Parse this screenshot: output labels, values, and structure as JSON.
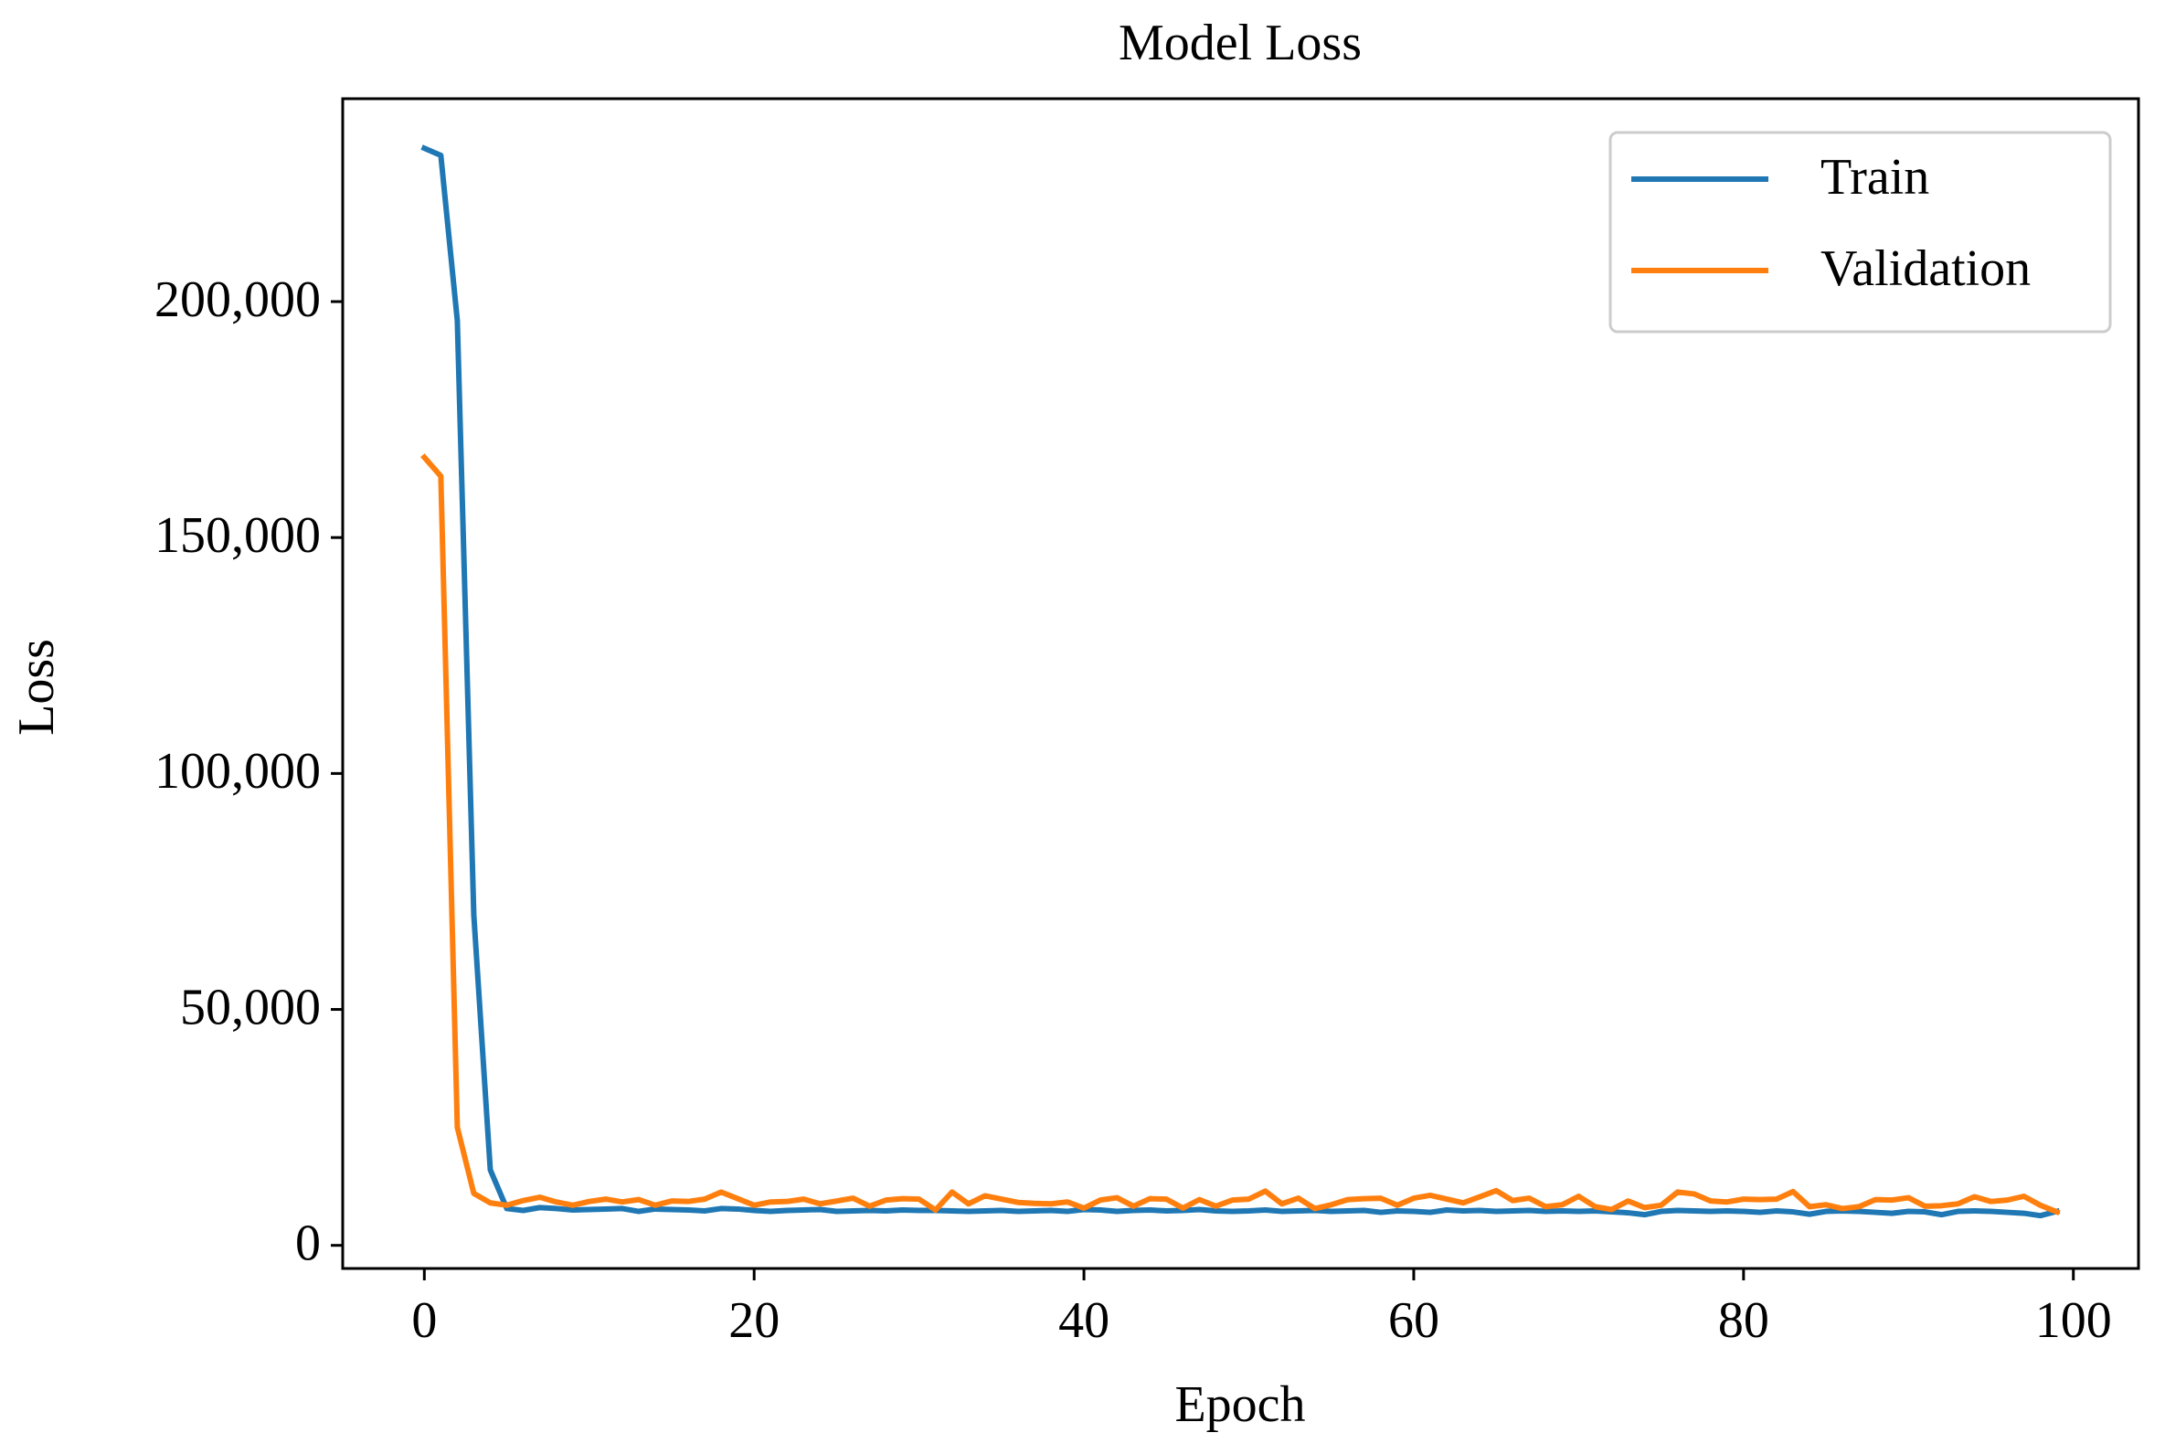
{
  "chart_data": {
    "type": "line",
    "title": "Model Loss",
    "xlabel": "Epoch",
    "ylabel": "Loss",
    "xlim": [
      -4.95,
      103.95
    ],
    "ylim": [
      -4900,
      243000
    ],
    "xticks": [
      0,
      20,
      40,
      60,
      80,
      100
    ],
    "xtick_labels": [
      "0",
      "20",
      "40",
      "60",
      "80",
      "100"
    ],
    "yticks": [
      0,
      50000,
      100000,
      150000,
      200000
    ],
    "ytick_labels": [
      "0",
      "50,000",
      "100,000",
      "150,000",
      "200,000"
    ],
    "grid": false,
    "legend_position": "top-right",
    "x": [
      0,
      1,
      2,
      3,
      4,
      5,
      6,
      7,
      8,
      9,
      10,
      11,
      12,
      13,
      14,
      15,
      16,
      17,
      18,
      19,
      20,
      21,
      22,
      23,
      24,
      25,
      26,
      27,
      28,
      29,
      30,
      31,
      32,
      33,
      34,
      35,
      36,
      37,
      38,
      39,
      40,
      41,
      42,
      43,
      44,
      45,
      46,
      47,
      48,
      49,
      50,
      51,
      52,
      53,
      54,
      55,
      56,
      57,
      58,
      59,
      60,
      61,
      62,
      63,
      64,
      65,
      66,
      67,
      68,
      69,
      70,
      71,
      72,
      73,
      74,
      75,
      76,
      77,
      78,
      79,
      80,
      81,
      82,
      83,
      84,
      85,
      86,
      87,
      88,
      89,
      90,
      91,
      92,
      93,
      94,
      95,
      96,
      97,
      98,
      99
    ],
    "series": [
      {
        "name": "Train",
        "color": "#1f77b4",
        "values": [
          232500,
          231000,
          196000,
          70000,
          16000,
          7800,
          7400,
          8000,
          7800,
          7500,
          7600,
          7700,
          7800,
          7200,
          7700,
          7600,
          7500,
          7300,
          7800,
          7700,
          7400,
          7200,
          7400,
          7500,
          7600,
          7200,
          7300,
          7400,
          7300,
          7500,
          7400,
          7400,
          7300,
          7200,
          7300,
          7400,
          7200,
          7300,
          7400,
          7200,
          7600,
          7500,
          7200,
          7400,
          7500,
          7300,
          7400,
          7600,
          7300,
          7200,
          7300,
          7500,
          7200,
          7300,
          7400,
          7200,
          7300,
          7400,
          7000,
          7300,
          7200,
          7000,
          7500,
          7300,
          7400,
          7200,
          7300,
          7400,
          7200,
          7300,
          7200,
          7300,
          7100,
          6900,
          6500,
          7200,
          7400,
          7300,
          7200,
          7300,
          7200,
          7000,
          7300,
          7100,
          6600,
          7200,
          7300,
          7200,
          7000,
          6800,
          7200,
          7100,
          6500,
          7200,
          7300,
          7200,
          7000,
          6800,
          6300,
          7200
        ]
      },
      {
        "name": "Validation",
        "color": "#ff7f0e",
        "values": [
          167000,
          163000,
          25000,
          11000,
          9000,
          8500,
          9500,
          10200,
          9200,
          8500,
          9300,
          9800,
          9200,
          9700,
          8500,
          9400,
          9300,
          9800,
          11300,
          9900,
          8500,
          9200,
          9300,
          9800,
          8800,
          9400,
          10000,
          8300,
          9600,
          9900,
          9800,
          7500,
          11300,
          8800,
          10500,
          9800,
          9100,
          8900,
          8800,
          9200,
          7900,
          9600,
          10100,
          8300,
          9900,
          9800,
          7900,
          9700,
          8300,
          9600,
          9800,
          11500,
          8800,
          10000,
          7800,
          8600,
          9700,
          9900,
          10000,
          8500,
          10000,
          10600,
          9800,
          9000,
          10300,
          11600,
          9500,
          10000,
          8200,
          8600,
          10400,
          8200,
          7600,
          9400,
          8000,
          8500,
          11300,
          10900,
          9400,
          9200,
          9800,
          9700,
          9800,
          11400,
          8200,
          8600,
          7800,
          8200,
          9700,
          9600,
          10100,
          8300,
          8400,
          8800,
          10300,
          9300,
          9600,
          10400,
          8500,
          7100
        ]
      }
    ]
  }
}
